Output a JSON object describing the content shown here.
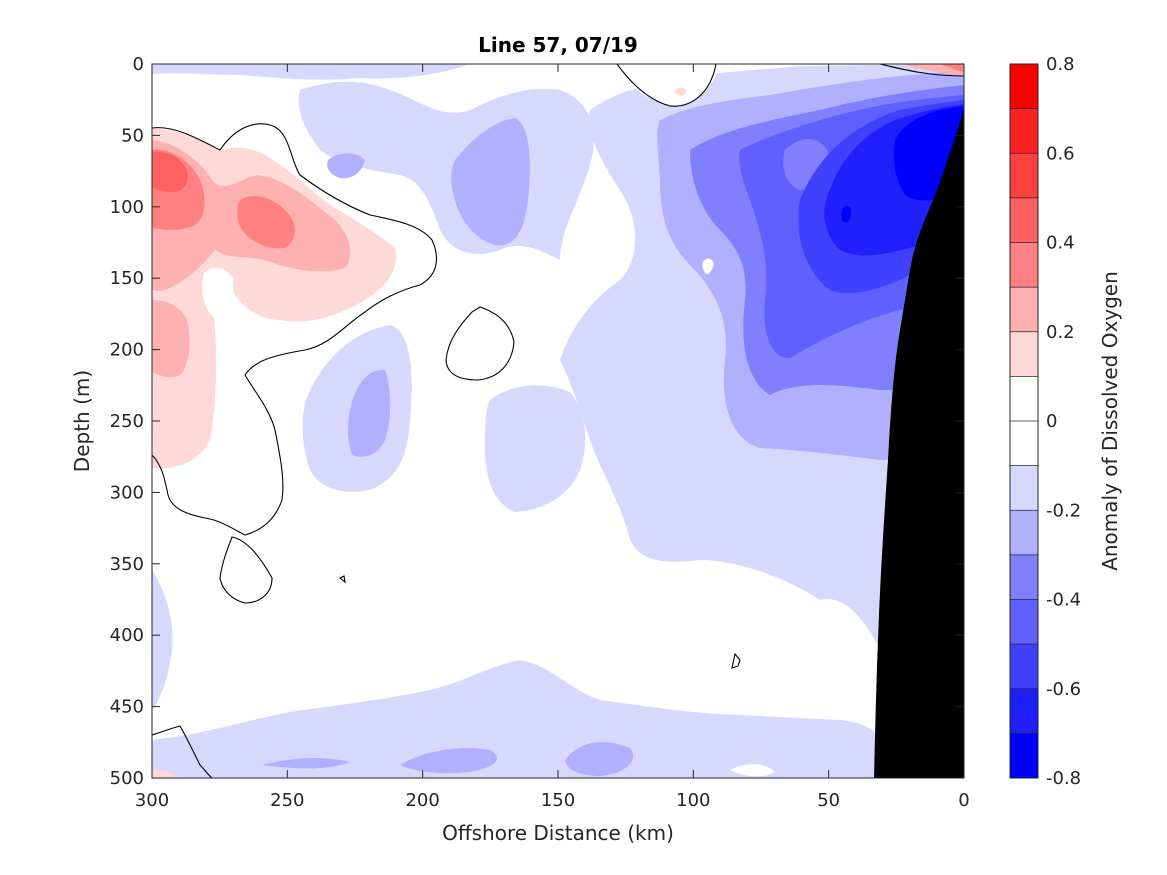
{
  "chart_data": {
    "type": "heatmap",
    "subtype": "filled-contour",
    "title": "Line 57, 07/19",
    "xlabel": "Offshore Distance (km)",
    "ylabel": "Depth (m)",
    "colorbar_label": "Anomaly of Dissolved Oxygen",
    "xlim": [
      300,
      0
    ],
    "ylim": [
      0,
      500
    ],
    "x_reversed": true,
    "y_reversed": true,
    "x_ticks": [
      300,
      250,
      200,
      150,
      100,
      50,
      0
    ],
    "y_ticks": [
      0,
      50,
      100,
      150,
      200,
      250,
      300,
      350,
      400,
      450,
      500
    ],
    "colorbar": {
      "range": [
        -0.8,
        0.8
      ],
      "ticks": [
        0.8,
        0.6,
        0.4,
        0.2,
        0,
        -0.2,
        -0.4,
        -0.6,
        -0.8
      ],
      "tick_labels": [
        "0.8",
        "0.6",
        "0.4",
        "0.2",
        "0",
        "-0.2",
        "-0.4",
        "-0.6",
        "-0.8"
      ],
      "levels": [
        0.8,
        0.7,
        0.6,
        0.5,
        0.4,
        0.3,
        0.2,
        0.1,
        0,
        -0.1,
        -0.2,
        -0.3,
        -0.4,
        -0.5,
        -0.6,
        -0.7,
        -0.8
      ],
      "colors_top_to_bottom": [
        "#ff0000",
        "#ff2020",
        "#ff4040",
        "#ff6060",
        "#ff8080",
        "#ffb0b0",
        "#ffd8d8",
        "#ffffff",
        "#ffffff",
        "#d8d8ff",
        "#b0b0ff",
        "#8080ff",
        "#6060ff",
        "#4040ff",
        "#2020ff",
        "#0000ff"
      ]
    },
    "features": [
      {
        "name": "positive anomaly core",
        "x_km": 292,
        "depth_m": 80,
        "value": 0.5
      },
      {
        "name": "positive anomaly",
        "x_km": 255,
        "depth_m": 115,
        "value": 0.4
      },
      {
        "name": "strong negative anomaly core",
        "x_km": 20,
        "depth_m": 80,
        "value": -0.8
      },
      {
        "name": "bathymetry",
        "description": "black seafloor mask near shore",
        "x_km_at_500m": 33,
        "x_km_at_50m": 0
      }
    ],
    "grid": false,
    "colorbar_position": "right"
  },
  "colors": {
    "positive": "#ff0000",
    "negative": "#0000ff",
    "seafloor": "#000000",
    "axis": "#262626"
  }
}
